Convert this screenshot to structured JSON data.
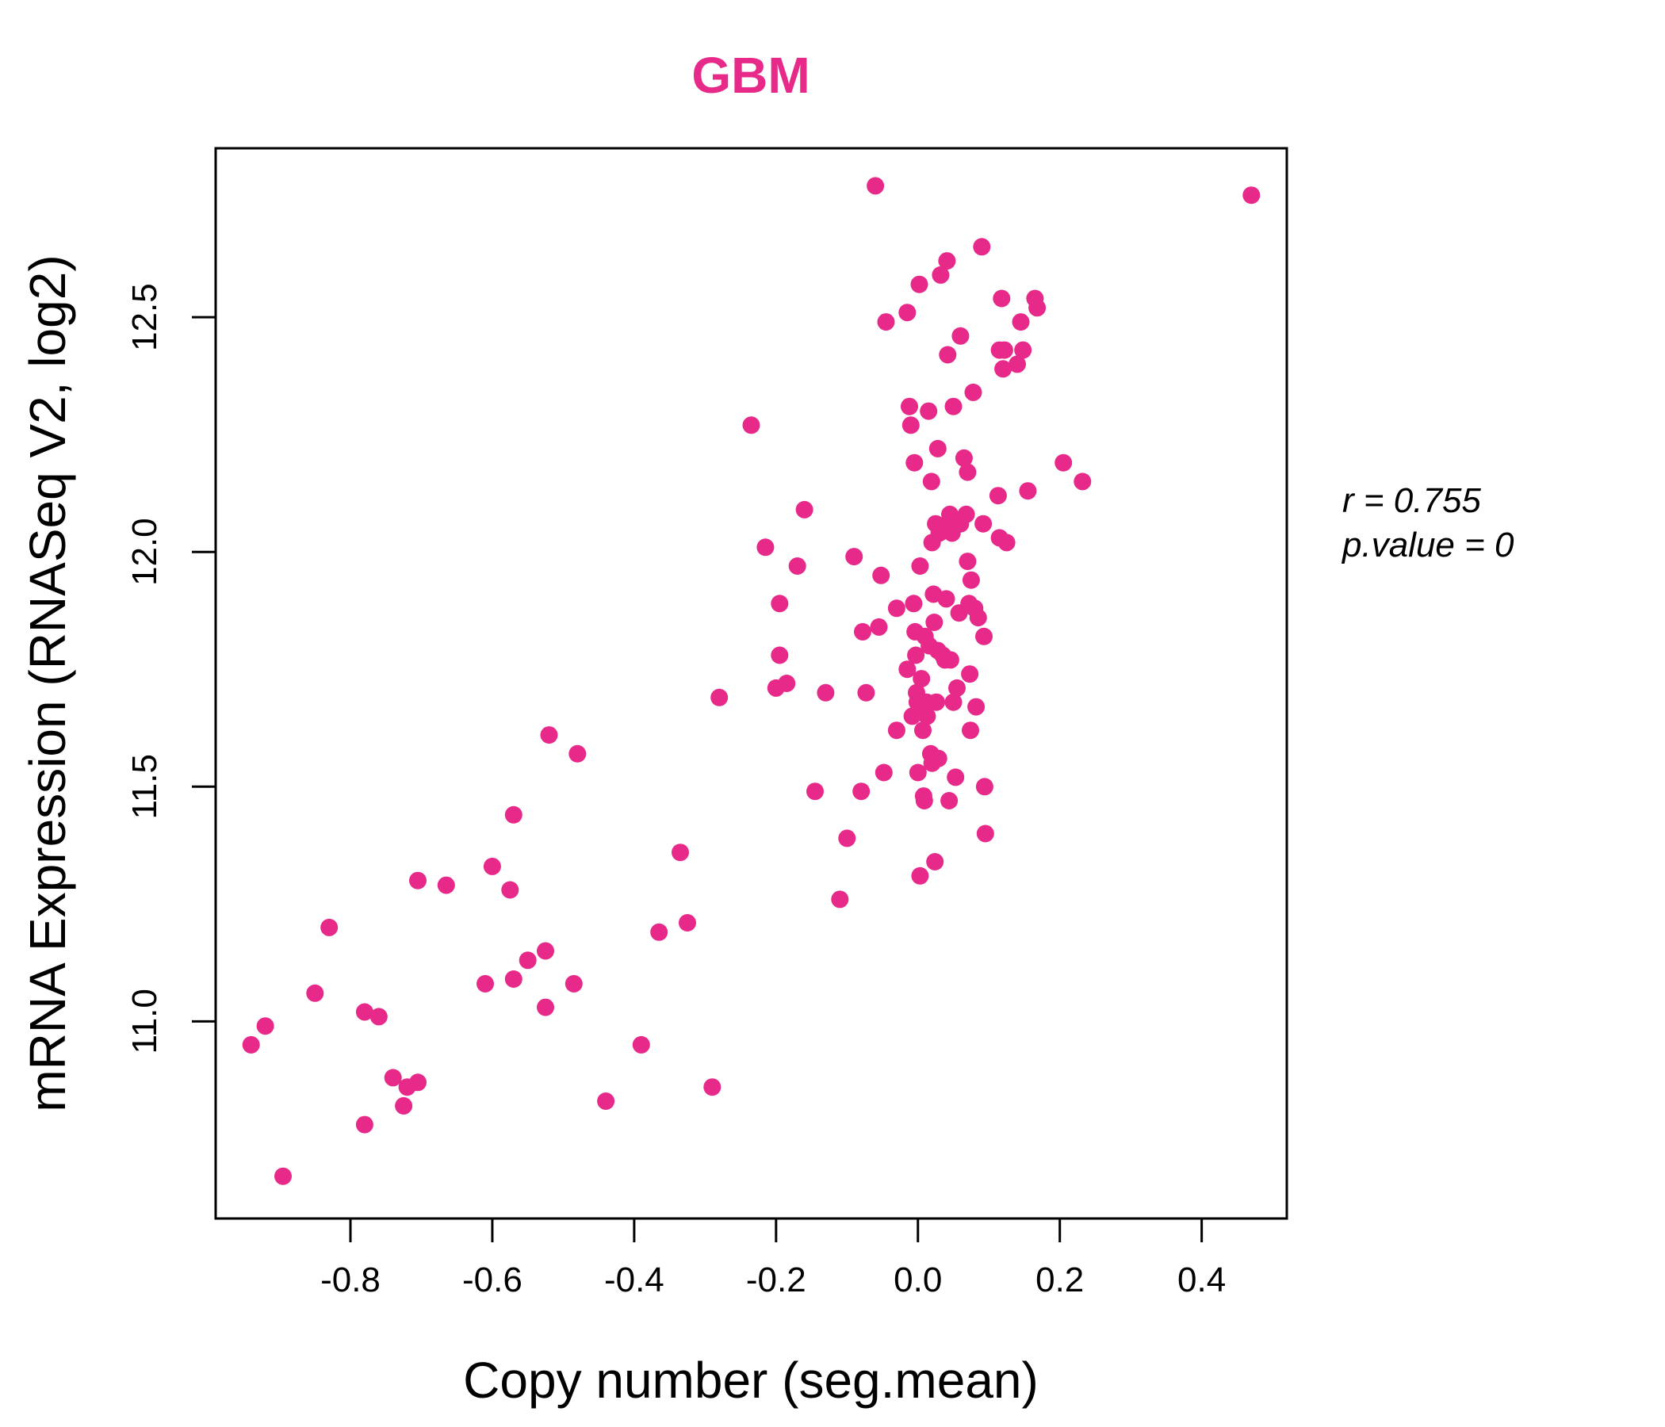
{
  "chart_data": {
    "type": "scatter",
    "title": "GBM",
    "xlabel": "Copy number (seg.mean)",
    "ylabel": "mRNA Expression (RNASeq V2, log2)",
    "xlim": [
      -0.99,
      0.52
    ],
    "ylim": [
      10.58,
      12.86
    ],
    "xticks": [
      -0.8,
      -0.6,
      -0.4,
      -0.2,
      0.0,
      0.2,
      0.4
    ],
    "xtick_labels": [
      "-0.8",
      "-0.6",
      "-0.4",
      "-0.2",
      "0.0",
      "0.2",
      "0.4"
    ],
    "yticks": [
      11.0,
      11.5,
      12.0,
      12.5
    ],
    "ytick_labels": [
      "11.0",
      "11.5",
      "12.0",
      "12.5"
    ],
    "grid": false,
    "color": "#e7298a",
    "stats": {
      "r": "r = 0.755",
      "p": "p.value = 0"
    },
    "series": [
      {
        "points": [
          [
            -0.94,
            10.95
          ],
          [
            -0.92,
            10.99
          ],
          [
            -0.895,
            10.67
          ],
          [
            -0.85,
            11.06
          ],
          [
            -0.83,
            11.2
          ],
          [
            -0.78,
            11.02
          ],
          [
            -0.78,
            10.78
          ],
          [
            -0.76,
            11.01
          ],
          [
            -0.74,
            10.88
          ],
          [
            -0.725,
            10.82
          ],
          [
            -0.72,
            10.86
          ],
          [
            -0.705,
            10.87
          ],
          [
            -0.705,
            11.3
          ],
          [
            -0.665,
            11.29
          ],
          [
            -0.6,
            11.33
          ],
          [
            -0.61,
            11.08
          ],
          [
            -0.575,
            11.28
          ],
          [
            -0.57,
            11.09
          ],
          [
            -0.57,
            11.44
          ],
          [
            -0.55,
            11.13
          ],
          [
            -0.525,
            11.15
          ],
          [
            -0.525,
            11.03
          ],
          [
            -0.52,
            11.61
          ],
          [
            -0.485,
            11.08
          ],
          [
            -0.48,
            11.57
          ],
          [
            -0.44,
            10.83
          ],
          [
            -0.39,
            10.95
          ],
          [
            -0.365,
            11.19
          ],
          [
            -0.335,
            11.36
          ],
          [
            -0.325,
            11.21
          ],
          [
            -0.29,
            10.86
          ],
          [
            -0.28,
            11.69
          ],
          [
            -0.235,
            12.27
          ],
          [
            -0.215,
            12.01
          ],
          [
            -0.2,
            11.71
          ],
          [
            -0.195,
            11.78
          ],
          [
            -0.195,
            11.89
          ],
          [
            -0.185,
            11.72
          ],
          [
            -0.17,
            11.97
          ],
          [
            -0.16,
            12.09
          ],
          [
            -0.145,
            11.49
          ],
          [
            -0.13,
            11.7
          ],
          [
            -0.11,
            11.26
          ],
          [
            -0.1,
            11.39
          ],
          [
            -0.09,
            11.99
          ],
          [
            -0.08,
            11.49
          ],
          [
            -0.078,
            11.83
          ],
          [
            -0.073,
            11.7
          ],
          [
            -0.055,
            11.84
          ],
          [
            -0.052,
            11.95
          ],
          [
            -0.048,
            11.53
          ],
          [
            -0.045,
            12.49
          ],
          [
            -0.03,
            11.62
          ],
          [
            -0.03,
            11.88
          ],
          [
            -0.06,
            12.78
          ],
          [
            -0.015,
            12.51
          ],
          [
            -0.015,
            11.75
          ],
          [
            -0.012,
            12.31
          ],
          [
            -0.01,
            12.27
          ],
          [
            -0.008,
            11.65
          ],
          [
            -0.006,
            11.89
          ],
          [
            -0.005,
            12.19
          ],
          [
            -0.004,
            11.83
          ],
          [
            -0.003,
            11.78
          ],
          [
            -0.002,
            11.7
          ],
          [
            -0.001,
            11.68
          ],
          [
            0.0,
            11.53
          ],
          [
            0.002,
            12.57
          ],
          [
            0.003,
            11.97
          ],
          [
            0.003,
            11.31
          ],
          [
            0.005,
            11.73
          ],
          [
            0.006,
            11.66
          ],
          [
            0.007,
            11.62
          ],
          [
            0.008,
            11.48
          ],
          [
            0.009,
            11.47
          ],
          [
            0.01,
            11.82
          ],
          [
            0.012,
            11.68
          ],
          [
            0.013,
            11.65
          ],
          [
            0.015,
            12.3
          ],
          [
            0.016,
            11.8
          ],
          [
            0.018,
            11.57
          ],
          [
            0.019,
            12.15
          ],
          [
            0.02,
            12.02
          ],
          [
            0.02,
            11.55
          ],
          [
            0.022,
            11.91
          ],
          [
            0.023,
            11.85
          ],
          [
            0.024,
            11.34
          ],
          [
            0.025,
            12.06
          ],
          [
            0.026,
            11.68
          ],
          [
            0.028,
            12.22
          ],
          [
            0.028,
            11.79
          ],
          [
            0.029,
            11.56
          ],
          [
            0.03,
            12.04
          ],
          [
            0.032,
            12.59
          ],
          [
            0.035,
            11.78
          ],
          [
            0.038,
            11.77
          ],
          [
            0.04,
            11.9
          ],
          [
            0.041,
            12.62
          ],
          [
            0.042,
            12.42
          ],
          [
            0.043,
            12.05
          ],
          [
            0.044,
            11.47
          ],
          [
            0.045,
            12.08
          ],
          [
            0.046,
            11.77
          ],
          [
            0.048,
            12.04
          ],
          [
            0.05,
            11.68
          ],
          [
            0.05,
            12.31
          ],
          [
            0.053,
            11.52
          ],
          [
            0.055,
            11.71
          ],
          [
            0.058,
            11.87
          ],
          [
            0.06,
            12.06
          ],
          [
            0.06,
            12.46
          ],
          [
            0.065,
            12.2
          ],
          [
            0.068,
            12.08
          ],
          [
            0.07,
            11.98
          ],
          [
            0.07,
            12.17
          ],
          [
            0.072,
            11.89
          ],
          [
            0.073,
            11.74
          ],
          [
            0.074,
            11.62
          ],
          [
            0.075,
            11.94
          ],
          [
            0.078,
            12.34
          ],
          [
            0.08,
            11.88
          ],
          [
            0.082,
            11.67
          ],
          [
            0.085,
            11.86
          ],
          [
            0.09,
            12.65
          ],
          [
            0.092,
            12.06
          ],
          [
            0.093,
            11.82
          ],
          [
            0.094,
            11.5
          ],
          [
            0.095,
            11.4
          ],
          [
            0.113,
            12.12
          ],
          [
            0.115,
            12.43
          ],
          [
            0.115,
            12.03
          ],
          [
            0.118,
            12.54
          ],
          [
            0.12,
            12.39
          ],
          [
            0.122,
            12.43
          ],
          [
            0.125,
            12.02
          ],
          [
            0.14,
            12.4
          ],
          [
            0.145,
            12.49
          ],
          [
            0.148,
            12.43
          ],
          [
            0.155,
            12.13
          ],
          [
            0.165,
            12.54
          ],
          [
            0.168,
            12.52
          ],
          [
            0.205,
            12.19
          ],
          [
            0.232,
            12.15
          ],
          [
            0.47,
            12.76
          ]
        ]
      }
    ]
  }
}
